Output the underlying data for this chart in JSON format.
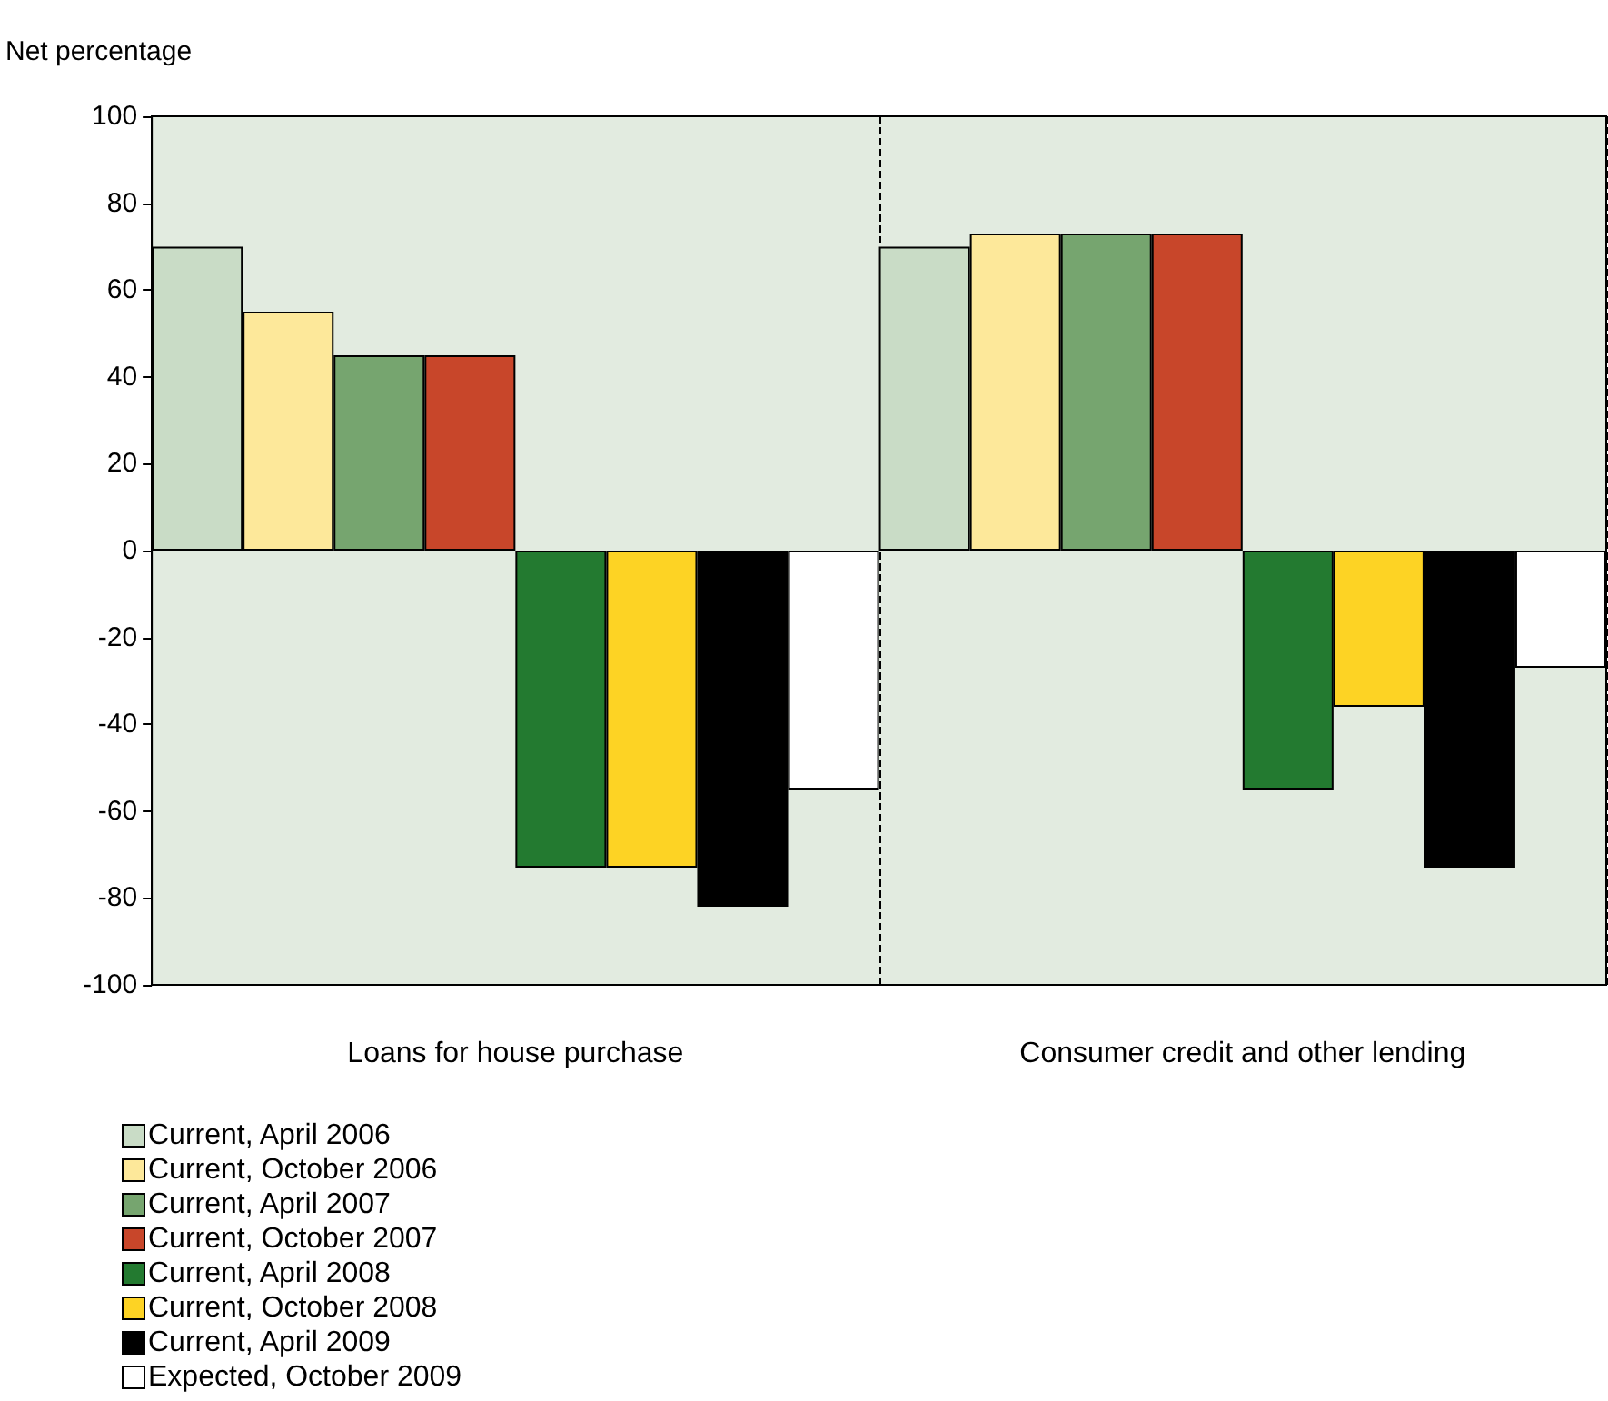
{
  "chart_data": {
    "type": "bar",
    "ylabel": "Net percentage",
    "categories": [
      "Loans for house purchase",
      "Consumer credit and other lending"
    ],
    "series": [
      {
        "name": "Current, April 2006",
        "color": "#c9dcc6",
        "values": [
          70,
          70
        ]
      },
      {
        "name": "Current, October 2006",
        "color": "#fde89a",
        "values": [
          55,
          73
        ]
      },
      {
        "name": "Current, April 2007",
        "color": "#76a56f",
        "values": [
          45,
          73
        ]
      },
      {
        "name": "Current, October 2007",
        "color": "#c8462a",
        "values": [
          45,
          73
        ]
      },
      {
        "name": "Current, April 2008",
        "color": "#237a30",
        "values": [
          -73,
          -55
        ]
      },
      {
        "name": "Current, October 2008",
        "color": "#fdd324",
        "values": [
          -73,
          -36
        ]
      },
      {
        "name": "Current, April 2009",
        "color": "#000000",
        "values": [
          -82,
          -73
        ]
      },
      {
        "name": "Expected, October 2009",
        "color": "#ffffff",
        "values": [
          -55,
          -27
        ]
      }
    ],
    "ylim": [
      -100,
      100
    ],
    "yticks": [
      -100,
      -80,
      -60,
      -40,
      -20,
      0,
      20,
      40,
      60,
      80,
      100
    ],
    "grid": false,
    "legend": "bottom left"
  }
}
